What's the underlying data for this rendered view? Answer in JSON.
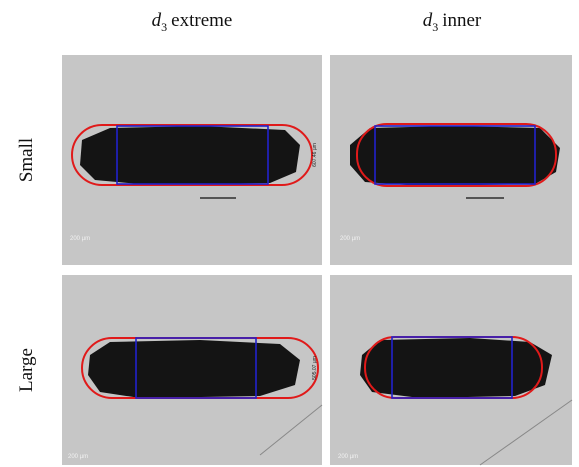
{
  "columns": [
    {
      "symbol": "d",
      "subscript": "3",
      "label": "extreme"
    },
    {
      "symbol": "d",
      "subscript": "3",
      "label": "inner"
    }
  ],
  "rows": [
    {
      "label": "Small",
      "panels": [
        {
          "scale": "200 µm",
          "measure": "607.46 µm"
        },
        {
          "scale": "200 µm"
        }
      ]
    },
    {
      "label": "Large",
      "panels": [
        {
          "scale": "200 µm",
          "measure": "505.07 µm"
        },
        {
          "scale": "200 µm"
        }
      ]
    }
  ]
}
